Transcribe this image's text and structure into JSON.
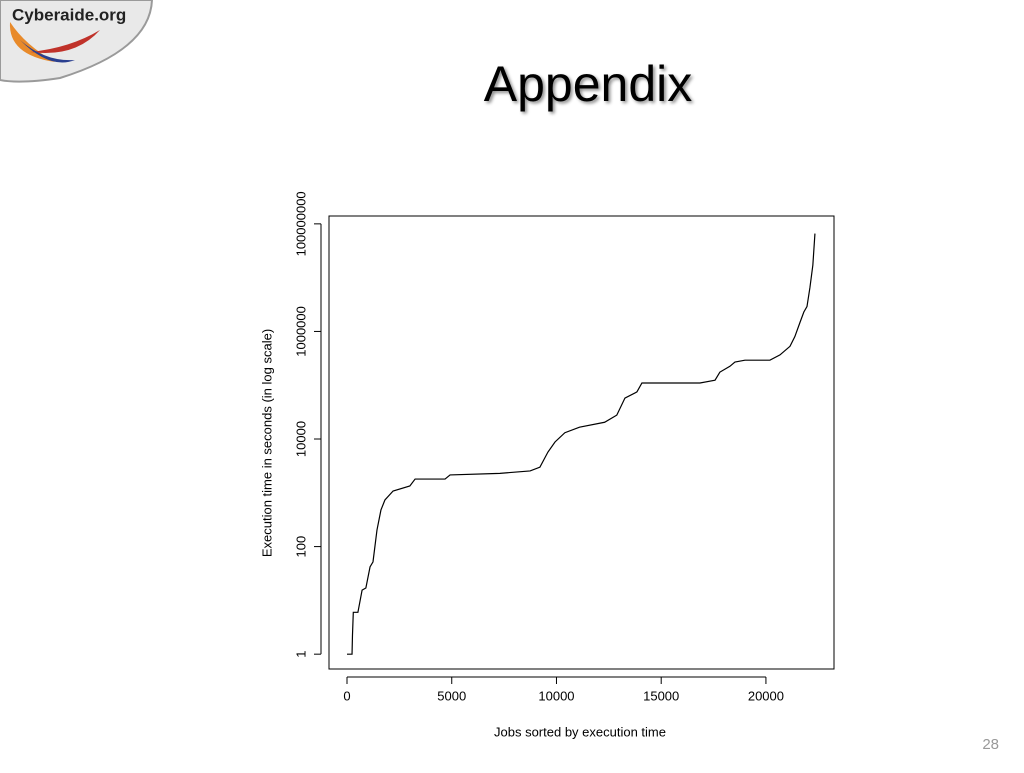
{
  "slide": {
    "logo": "Cyberaide.org",
    "title": "Appendix",
    "page_number": "28"
  },
  "chart_data": {
    "type": "line",
    "xlabel": "Jobs sorted by execution time",
    "ylabel": "Execution time in seconds (in log scale)",
    "yscale": "log",
    "color": "#000000",
    "xlim": [
      -860,
      23250
    ],
    "xticks": [
      0,
      5000,
      10000,
      15000,
      20000
    ],
    "ylim": [
      0.53,
      140000000
    ],
    "yticks": [
      1,
      100,
      10000,
      1000000,
      100000000
    ],
    "x": [
      0,
      240,
      260,
      300,
      520,
      720,
      900,
      1100,
      1240,
      1430,
      1620,
      1810,
      2200,
      3000,
      3250,
      4680,
      4920,
      7300,
      8740,
      9210,
      9590,
      9930,
      10400,
      11100,
      12300,
      12880,
      13270,
      13840,
      14080,
      16850,
      17570,
      17800,
      18280,
      18520,
      19000,
      20190,
      20670,
      21150,
      21380,
      21620,
      21810,
      21960,
      22100,
      22240,
      22340
    ],
    "values": [
      1,
      1,
      2.2,
      6,
      6,
      15.5,
      17,
      42,
      52,
      203,
      480,
      735,
      1080,
      1340,
      1800,
      1800,
      2150,
      2300,
      2550,
      3000,
      5700,
      8800,
      13100,
      16600,
      20500,
      27800,
      57800,
      75000,
      110000,
      110000,
      124000,
      175000,
      225000,
      270000,
      292000,
      292000,
      366000,
      530000,
      800000,
      1450000,
      2300000,
      2900000,
      6500000,
      17000000,
      66000000
    ]
  }
}
